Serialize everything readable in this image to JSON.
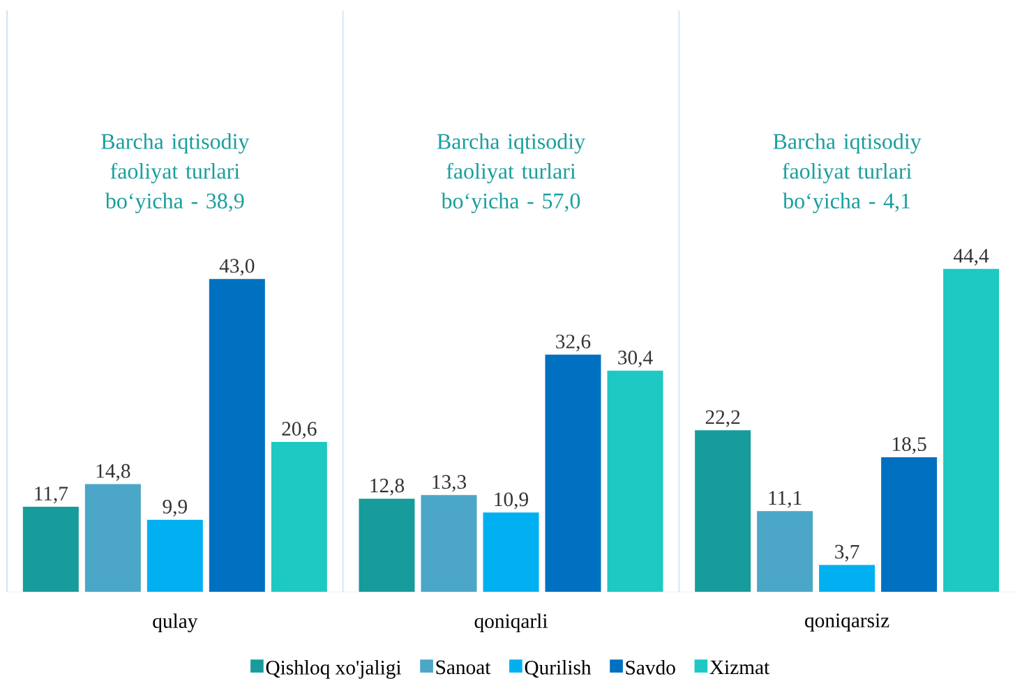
{
  "chart_data": {
    "type": "bar",
    "categories": [
      "qulay",
      "qoniqarli",
      "qoniqarsiz"
    ],
    "series": [
      {
        "name": "Qishloq xo'jaligi",
        "color": "#179b9b",
        "values": [
          11.7,
          12.8,
          22.2
        ],
        "value_labels": [
          "11,7",
          "12,8",
          "22,2"
        ]
      },
      {
        "name": "Sanoat",
        "color": "#4ba6c8",
        "values": [
          14.8,
          13.3,
          11.1
        ],
        "value_labels": [
          "14,8",
          "13,3",
          "11,1"
        ]
      },
      {
        "name": "Qurilish",
        "color": "#00b0f0",
        "values": [
          9.9,
          10.9,
          3.7
        ],
        "value_labels": [
          "9,9",
          "10,9",
          "3,7"
        ]
      },
      {
        "name": "Savdo",
        "color": "#0070c0",
        "values": [
          43.0,
          32.6,
          18.5
        ],
        "value_labels": [
          "43,0",
          "32,6",
          "18,5"
        ]
      },
      {
        "name": "Xizmat",
        "color": "#1ec8c3",
        "values": [
          20.6,
          30.4,
          44.4
        ],
        "value_labels": [
          "20,6",
          "30,4",
          "44,4"
        ]
      }
    ],
    "annotations": [
      "Barcha iqtisodiy faoliyat turlari bo‘yicha - 38,9",
      "Barcha iqtisodiy faoliyat turlari bo‘yicha - 57,0",
      "Barcha iqtisodiy faoliyat turlari bo‘yicha - 4,1"
    ],
    "legend": "bottom"
  }
}
